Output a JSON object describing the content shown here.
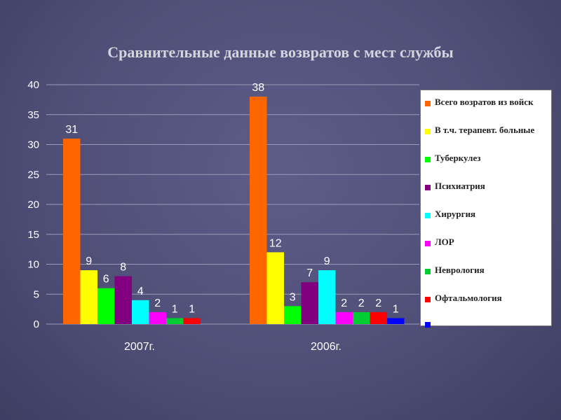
{
  "title": "Сравнительные данные возвратов с мест службы",
  "chart_data": {
    "type": "bar",
    "categories": [
      "2007г.",
      "2006г."
    ],
    "ylim": [
      0,
      40
    ],
    "yticks": [
      0,
      5,
      10,
      15,
      20,
      25,
      30,
      35,
      40
    ],
    "grid": true,
    "legend_position": "right",
    "series": [
      {
        "name": "Всего возратов из войск",
        "color": "#ff6600",
        "values": [
          31,
          38
        ]
      },
      {
        "name": "В т.ч. терапевт. больные",
        "color": "#ffff00",
        "values": [
          9,
          12
        ]
      },
      {
        "name": "Туберкулез",
        "color": "#00ff00",
        "values": [
          6,
          3
        ]
      },
      {
        "name": "Психиатрия",
        "color": "#800080",
        "values": [
          8,
          7
        ]
      },
      {
        "name": "Хирургия",
        "color": "#00ffff",
        "values": [
          4,
          9
        ]
      },
      {
        "name": "ЛОР",
        "color": "#ff00ff",
        "values": [
          2,
          2
        ]
      },
      {
        "name": "Неврология",
        "color": "#00cc33",
        "values": [
          1,
          2
        ]
      },
      {
        "name": "Офтальмология",
        "color": "#ff0000",
        "values": [
          1,
          2
        ]
      },
      {
        "name": "",
        "color": "#0000ff",
        "values": [
          null,
          1
        ]
      }
    ]
  }
}
